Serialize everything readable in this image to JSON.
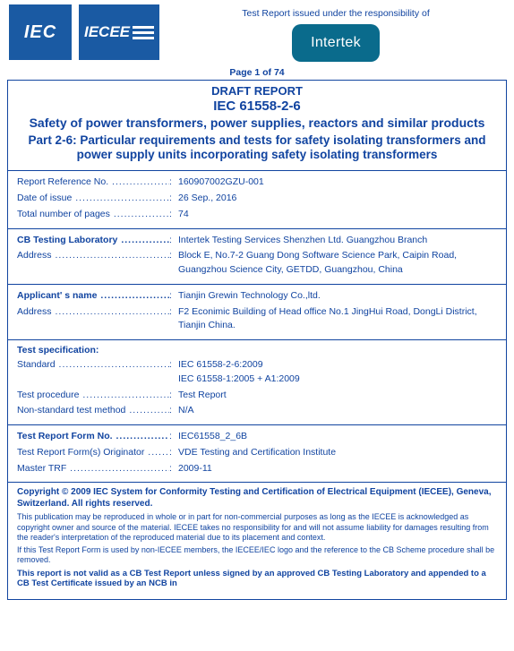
{
  "header": {
    "iec_logo_text": "IEC",
    "iecee_logo_text": "IECEE",
    "responsibility_text": "Test Report issued under the responsibility of",
    "intertek_text": "Intertek"
  },
  "page_label": "Page 1 of 74",
  "title": {
    "draft": "DRAFT REPORT",
    "std": "IEC 61558-2-6",
    "main": "Safety of power transformers, power supplies, reactors and similar products",
    "sub": "Part 2-6: Particular requirements and tests for safety isolating transformers and power supply units incorporating safety isolating transformers"
  },
  "section_report": {
    "ref_no": {
      "label": "Report Reference No.",
      "value": "160907002GZU-001"
    },
    "date": {
      "label": "Date of issue",
      "value": "26 Sep., 2016"
    },
    "pages": {
      "label": "Total number of pages",
      "value": "74"
    }
  },
  "section_lab": {
    "lab": {
      "label": "CB Testing Laboratory",
      "value": "Intertek Testing Services Shenzhen Ltd. Guangzhou Branch"
    },
    "addr": {
      "label": "Address",
      "value": "Block E, No.7-2 Guang Dong Software Science Park, Caipin Road, Guangzhou Science City, GETDD, Guangzhou, China"
    }
  },
  "section_applicant": {
    "name": {
      "label": "Applicant' s name",
      "value": "Tianjin Grewin Technology Co.,ltd."
    },
    "addr": {
      "label": "Address",
      "value": "F2 Econimic Building of Head office No.1 JingHui Road, DongLi District, Tianjin China."
    }
  },
  "section_spec": {
    "heading": "Test specification:",
    "std": {
      "label": "Standard",
      "value": "IEC 61558-2-6:2009",
      "value2": "IEC 61558-1:2005 + A1:2009"
    },
    "proc": {
      "label": "Test procedure",
      "value": "Test Report"
    },
    "nsm": {
      "label": "Non-standard test method",
      "value": "N/A"
    }
  },
  "section_form": {
    "formno": {
      "label": "Test Report Form No.",
      "value": "IEC61558_2_6B"
    },
    "orig": {
      "label": "Test Report Form(s) Originator",
      "value": "VDE Testing and Certification Institute"
    },
    "master": {
      "label": "Master TRF",
      "value": "2009-11"
    }
  },
  "footer": {
    "copyright": "Copyright © 2009 IEC System for Conformity Testing and Certification of Electrical Equipment (IECEE), Geneva, Switzerland. All rights reserved.",
    "p1": "This publication may be reproduced in whole or in part for non-commercial purposes as long as the IECEE is acknowledged as copyright owner and source of the material. IECEE takes no responsibility for and will not assume liability for damages resulting from the reader's interpretation of the reproduced material due to its placement and context.",
    "p2": "If this Test Report Form is used by non-IECEE members, the IECEE/IEC logo and the reference to the CB Scheme procedure shall be removed.",
    "final": "This report is not valid as a CB Test Report unless signed by an approved CB Testing Laboratory and appended to a CB Test Certificate issued by an NCB in"
  },
  "colors": {
    "brand_blue": "#1144a0",
    "logo_blue": "#1a5aa3",
    "intertek_teal": "#0a6b8c"
  }
}
